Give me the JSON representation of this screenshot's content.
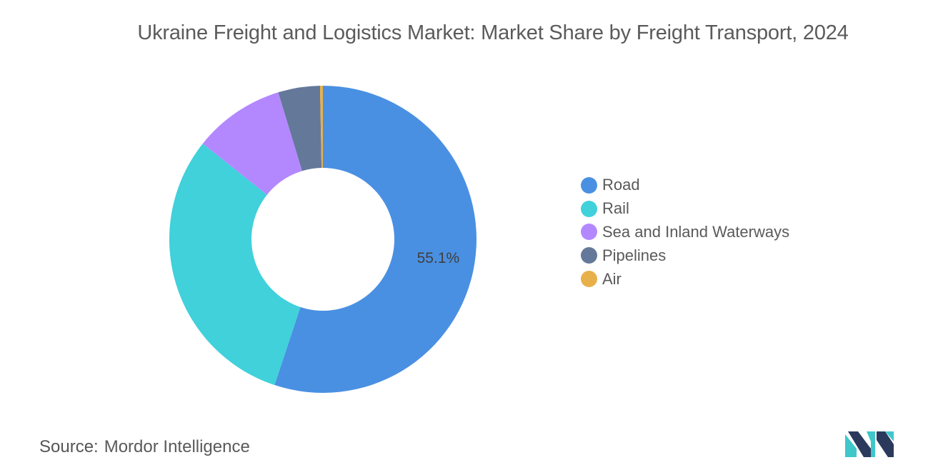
{
  "chart_data": {
    "type": "pie",
    "variant": "donut",
    "title": "Ukraine Freight and Logistics Market: Market Share by Freight Transport, 2024",
    "categories": [
      "Road",
      "Rail",
      "Sea and Inland Waterways",
      "Pipelines",
      "Air"
    ],
    "values": [
      55.1,
      30.6,
      9.6,
      4.4,
      0.3
    ],
    "colors": [
      "#4a90e2",
      "#40d1db",
      "#b388ff",
      "#64789a",
      "#e8b04a"
    ],
    "data_labels": [
      {
        "category": "Road",
        "text": "55.1%"
      }
    ],
    "legend_placement": "right"
  },
  "legend": {
    "items": [
      {
        "label": "Road",
        "color": "#4a90e2"
      },
      {
        "label": "Rail",
        "color": "#40d1db"
      },
      {
        "label": "Sea and Inland Waterways",
        "color": "#b388ff"
      },
      {
        "label": "Pipelines",
        "color": "#64789a"
      },
      {
        "label": "Air",
        "color": "#e8b04a"
      }
    ]
  },
  "source": {
    "label": "Source:",
    "text": "Mordor Intelligence"
  },
  "logo": {
    "icon": "mordor-intelligence-logo-icon",
    "colors": [
      "#2b3a5c",
      "#3fc7c9"
    ]
  }
}
